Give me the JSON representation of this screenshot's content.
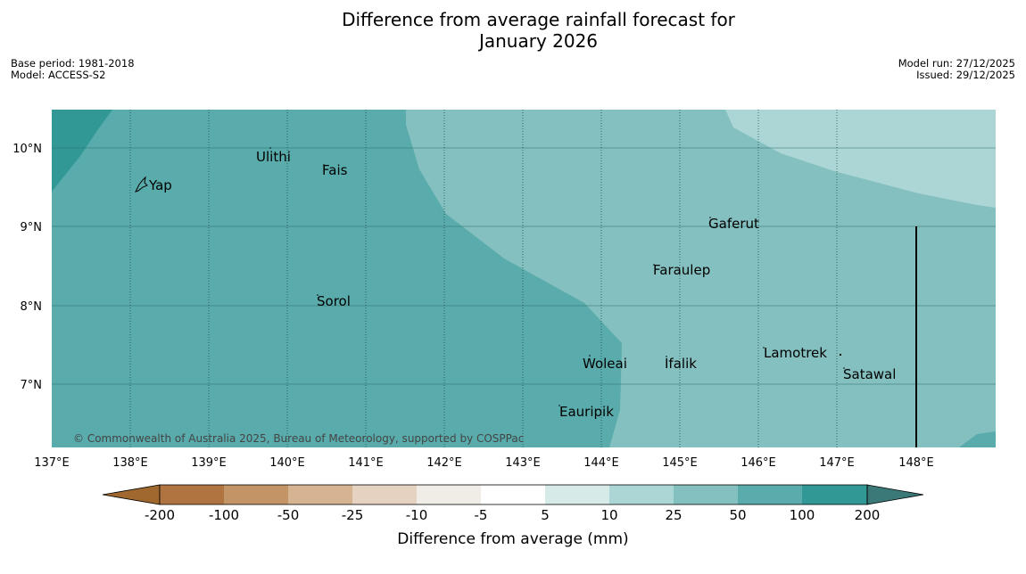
{
  "title": {
    "line1": "Difference from average rainfall forecast for",
    "line2": "January 2026"
  },
  "meta": {
    "base_period": "Base period: 1981-2018",
    "model": "Model: ACCESS-S2",
    "model_run": "Model run: 27/12/2025",
    "issued": "Issued: 29/12/2025"
  },
  "map": {
    "lat_labels": [
      "10°N",
      "9°N",
      "8°N",
      "7°N"
    ],
    "lon_labels": [
      "137°E",
      "138°E",
      "139°E",
      "140°E",
      "141°E",
      "142°E",
      "143°E",
      "144°E",
      "145°E",
      "146°E",
      "147°E",
      "148°E"
    ],
    "places": [
      "Ulithi",
      "Fais",
      "Yap",
      "Gaferut",
      "Faraulep",
      "Sorol",
      "Lamotrek",
      "Woleai",
      "Ifalik",
      "Satawal",
      "Eauripik"
    ],
    "copyright": "© Commonwealth of Australia 2025, Bureau of Meteorology, supported by COSPPac"
  },
  "colorbar": {
    "ticks": [
      "-200",
      "-100",
      "-50",
      "-25",
      "-10",
      "-5",
      "5",
      "10",
      "25",
      "50",
      "100",
      "200"
    ],
    "colors": [
      "#a0682e",
      "#b07440",
      "#c39466",
      "#d6b391",
      "#e5d2c0",
      "#f0ede6",
      "#ffffff",
      "#d6eae8",
      "#acd6d6",
      "#84c0bf",
      "#5aabab",
      "#329896",
      "#3b7979"
    ],
    "label": "Difference from average (mm)"
  }
}
